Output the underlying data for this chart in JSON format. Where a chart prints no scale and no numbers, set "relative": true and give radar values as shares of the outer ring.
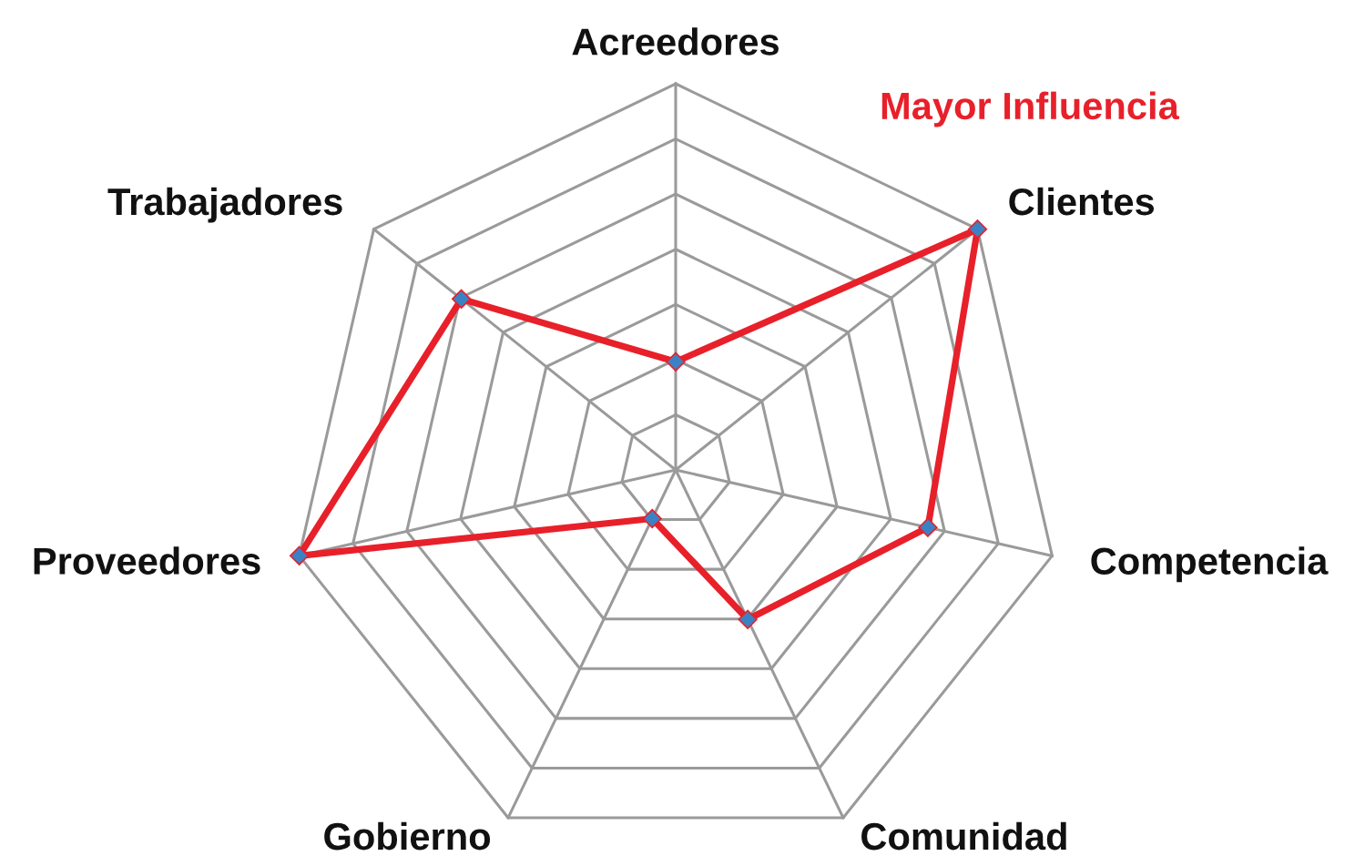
{
  "chart_data": {
    "type": "radar",
    "relative": true,
    "categories": [
      "Acreedores",
      "Clientes",
      "Competencia",
      "Comunidad",
      "Gobierno",
      "Proveedores",
      "Trabajadores"
    ],
    "series": [
      {
        "name": "Mayor Influencia",
        "color": "#e8202a",
        "values": [
          0.28,
          1.0,
          0.67,
          0.43,
          0.14,
          1.0,
          0.71
        ]
      }
    ],
    "marker": "diamond",
    "grid": true,
    "legend": "top right"
  }
}
